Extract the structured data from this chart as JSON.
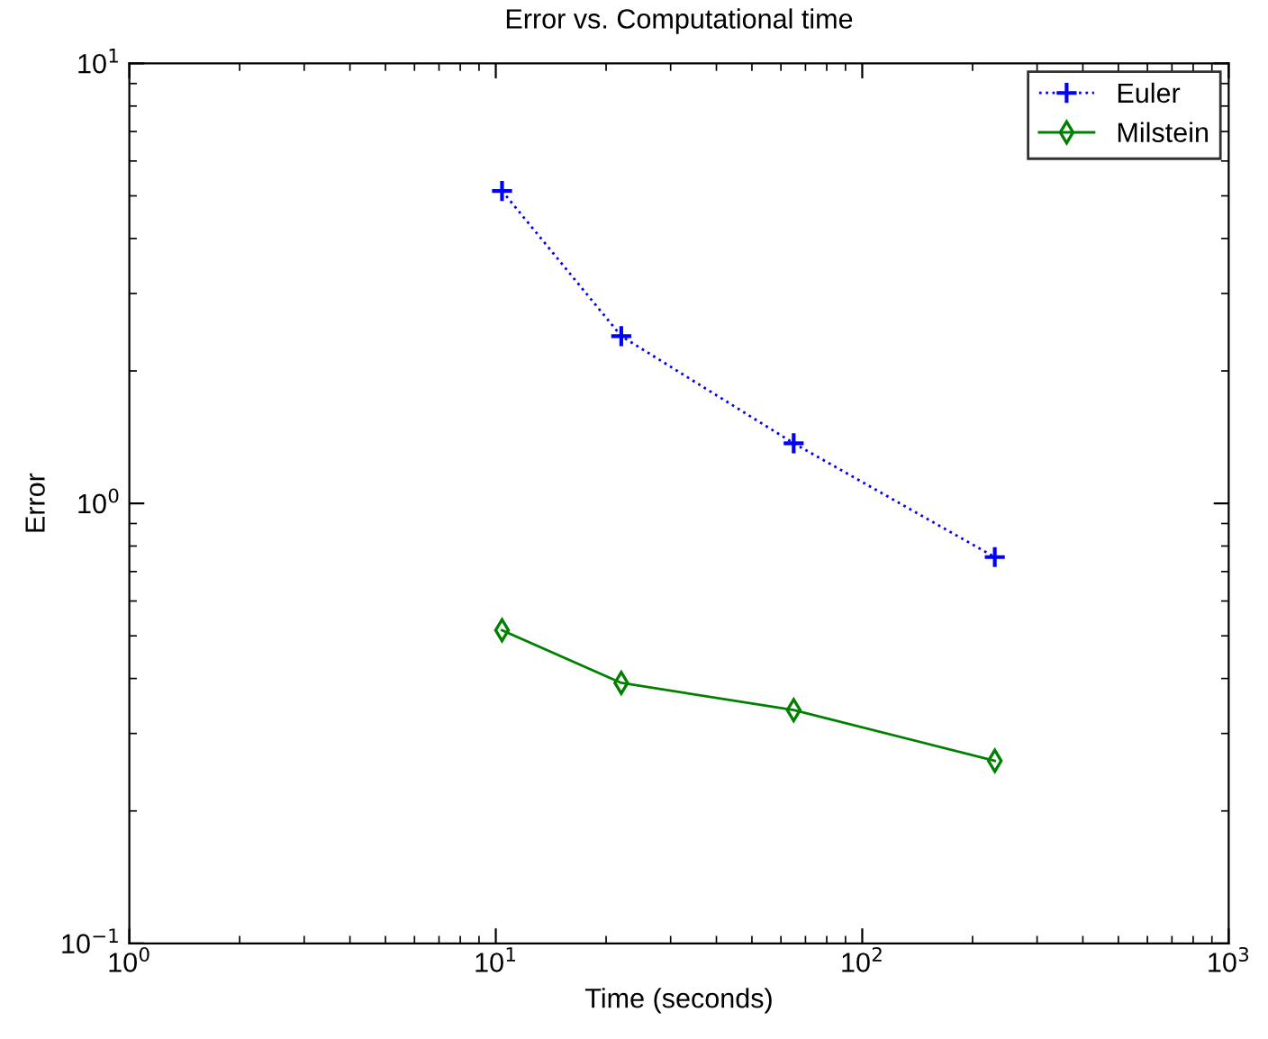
{
  "chart_data": {
    "type": "line",
    "title": "Error vs. Computational time",
    "xlabel": "Time (seconds)",
    "ylabel": "Error",
    "log": "xy",
    "grid": false,
    "legend": "top right",
    "xlim": [
      1,
      1000
    ],
    "ylim": [
      0.1,
      10
    ],
    "xticks": [
      {
        "value": 1,
        "label": "10$^{0}$"
      },
      {
        "value": 10,
        "label": "10$^{1}$"
      },
      {
        "value": 100,
        "label": "10$^{2}$"
      },
      {
        "value": 1000,
        "label": "10$^{3}$"
      }
    ],
    "yticks": [
      {
        "value": 0.1,
        "label": "10$^{−1}$"
      },
      {
        "value": 1,
        "label": "10$^{0}$"
      },
      {
        "value": 10,
        "label": "10$^{1}$"
      }
    ],
    "series": [
      {
        "name": "Euler",
        "color": "#0000ff",
        "marker": "cross",
        "line_style": "dotted",
        "x": [
          10.4,
          22,
          65,
          230
        ],
        "values": [
          5.13,
          2.4,
          1.37,
          0.755
        ]
      },
      {
        "name": "Milstein",
        "color": "#008000",
        "marker": "diamond",
        "line_style": "solid",
        "x": [
          10.4,
          22,
          65,
          230
        ],
        "values": [
          0.515,
          0.391,
          0.339,
          0.26
        ]
      }
    ]
  }
}
